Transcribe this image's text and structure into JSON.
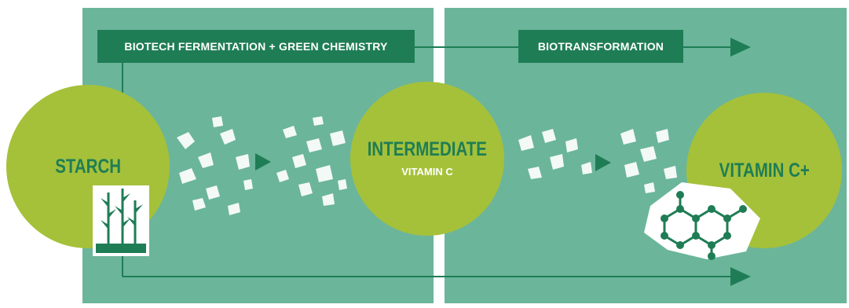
{
  "colors": {
    "panel": "#6bb59b",
    "dark_green": "#1f7d55",
    "lime": "#a5c13a",
    "speckle": "#ffffff",
    "arrow": "#1f7d55",
    "title_text": "#1f7d55",
    "sub_text": "#ffffff"
  },
  "stages": {
    "stage1": {
      "label": "BIOTECH FERMENTATION + GREEN CHEMISTRY"
    },
    "stage2": {
      "label": "BIOTRANSFORMATION"
    }
  },
  "nodes": {
    "starch": {
      "title": "STARCH"
    },
    "intermediate": {
      "title": "INTERMEDIATE",
      "subtitle": "VITAMIN C"
    },
    "vitamin_c_plus": {
      "title": "VITAMIN C+"
    }
  },
  "icons": {
    "plant": "plant-sprouts-icon",
    "molecule": "molecule-structure-icon",
    "arrow": "triangle-arrow-icon"
  }
}
